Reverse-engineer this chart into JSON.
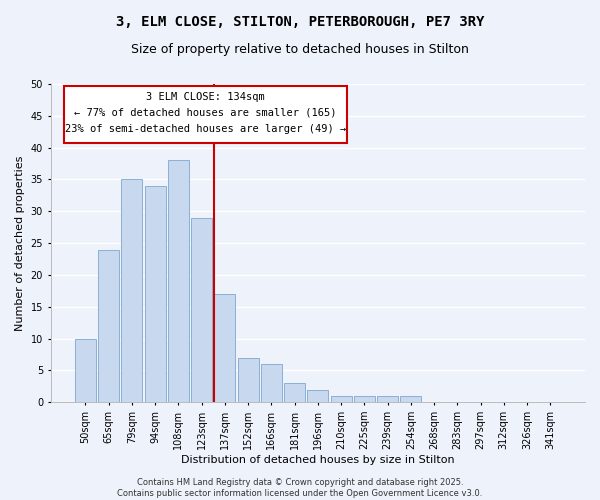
{
  "title_line1": "3, ELM CLOSE, STILTON, PETERBOROUGH, PE7 3RY",
  "title_line2": "Size of property relative to detached houses in Stilton",
  "xlabel": "Distribution of detached houses by size in Stilton",
  "ylabel": "Number of detached properties",
  "bar_labels": [
    "50sqm",
    "65sqm",
    "79sqm",
    "94sqm",
    "108sqm",
    "123sqm",
    "137sqm",
    "152sqm",
    "166sqm",
    "181sqm",
    "196sqm",
    "210sqm",
    "225sqm",
    "239sqm",
    "254sqm",
    "268sqm",
    "283sqm",
    "297sqm",
    "312sqm",
    "326sqm",
    "341sqm"
  ],
  "bar_values": [
    10,
    24,
    35,
    34,
    38,
    29,
    17,
    7,
    6,
    3,
    2,
    1,
    1,
    1,
    1,
    0,
    0,
    0,
    0,
    0,
    0
  ],
  "bar_color": "#c8d9ef",
  "bar_edge_color": "#8ab0d4",
  "red_line_x": 6.5,
  "annotation_title": "3 ELM CLOSE: 134sqm",
  "annotation_line1": "← 77% of detached houses are smaller (165)",
  "annotation_line2": "23% of semi-detached houses are larger (49) →",
  "annotation_box_color": "#ffffff",
  "annotation_box_edge_color": "#cc0000",
  "red_line_color": "#cc0000",
  "ylim": [
    0,
    50
  ],
  "yticks": [
    0,
    5,
    10,
    15,
    20,
    25,
    30,
    35,
    40,
    45,
    50
  ],
  "footer_line1": "Contains HM Land Registry data © Crown copyright and database right 2025.",
  "footer_line2": "Contains public sector information licensed under the Open Government Licence v3.0.",
  "background_color": "#eef2fb",
  "grid_color": "#ffffff",
  "title_fontsize": 10,
  "subtitle_fontsize": 9,
  "axis_label_fontsize": 8,
  "tick_fontsize": 7,
  "footer_fontsize": 6
}
